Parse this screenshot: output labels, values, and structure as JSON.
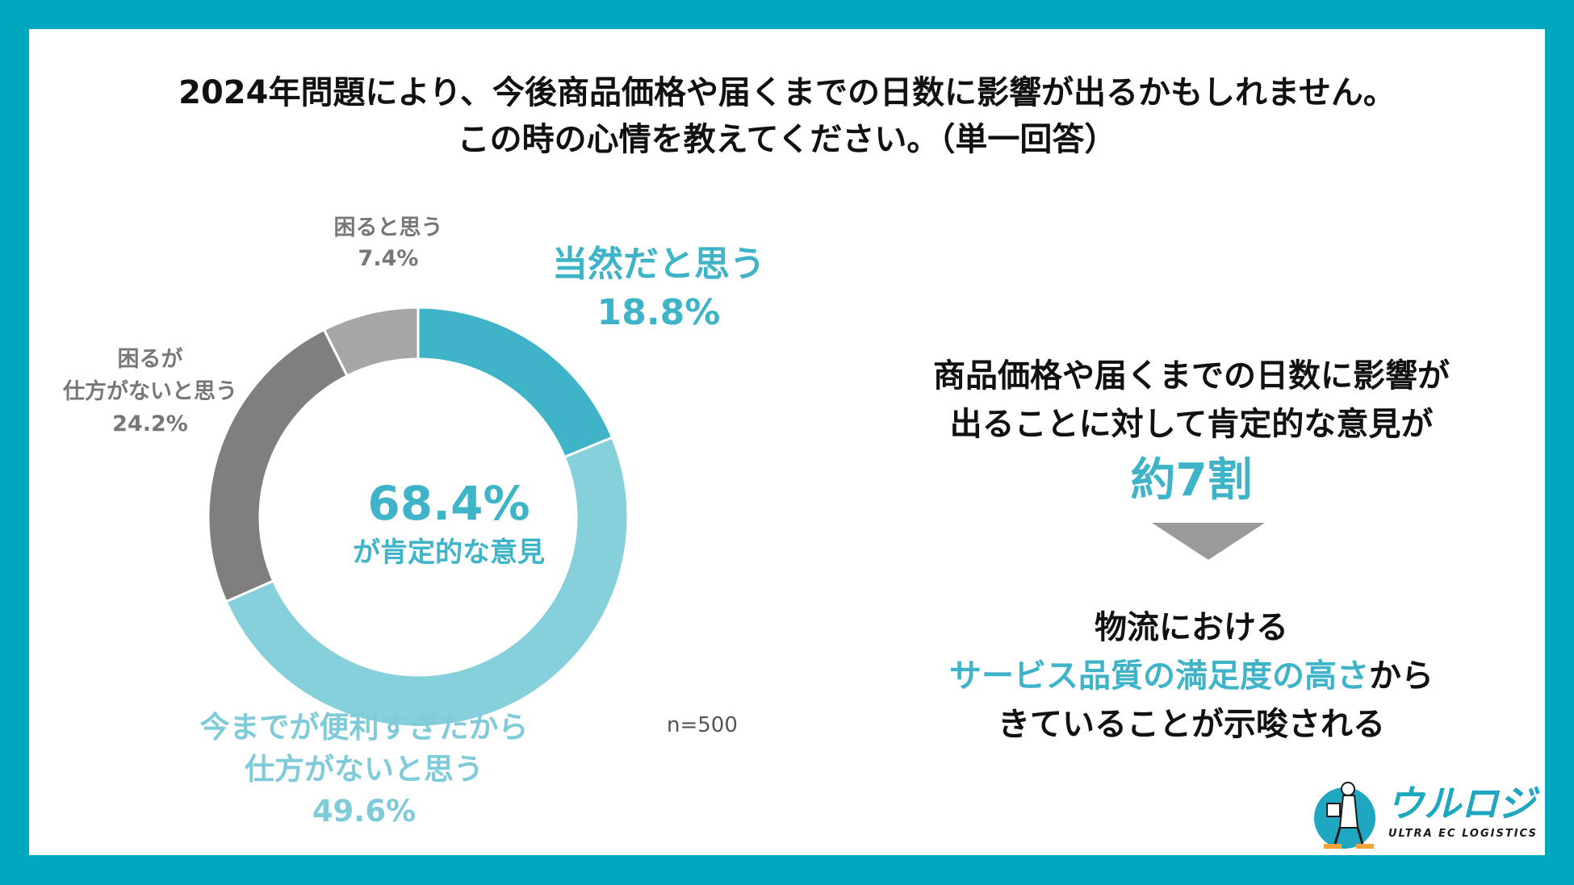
{
  "title": {
    "line1": "2024年問題により、今後商品価格や届くまでの日数に影響が出るかもしれません。",
    "line2": "この時の心情を教えてください。（単一回答）"
  },
  "chart_data": {
    "type": "pie",
    "title": "",
    "sample": "n=500",
    "slices": [
      {
        "label": "当然だと思う",
        "value": 18.8,
        "display": "18.8%",
        "color": "#3fb3c8"
      },
      {
        "label": "今までが便利すぎたから仕方がないと思う",
        "display_line1": "今までが便利すぎたから",
        "display_line2": "仕方がないと思う",
        "value": 49.6,
        "display": "49.6%",
        "color": "#86d0dc"
      },
      {
        "label": "困るが仕方がないと思う",
        "display_line1": "困るが",
        "display_line2": "仕方がないと思う",
        "value": 24.2,
        "display": "24.2%",
        "color": "#7f7f7f"
      },
      {
        "label": "困ると思う",
        "value": 7.4,
        "display": "7.4%",
        "color": "#a6a6a6"
      }
    ],
    "center": {
      "value": "68.4%",
      "text": "が肯定的な意見"
    }
  },
  "summary": {
    "line1": "商品価格や届くまでの日数に影響が",
    "line2": "出ることに対して肯定的な意見が",
    "highlight": "約7割",
    "conclusion_line1": "物流における",
    "conclusion_highlight": "サービス品質の満足度の高さ",
    "conclusion_after": "から",
    "conclusion_line3": "きていることが示唆される"
  },
  "logo": {
    "name": "ウルロジ",
    "tagline": "ULTRA EC LOGISTICS"
  }
}
